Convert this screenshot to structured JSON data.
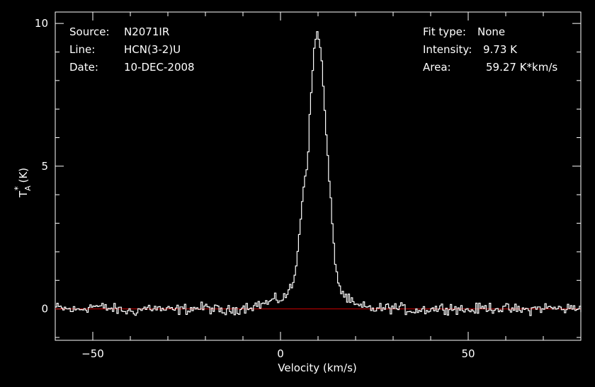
{
  "header": {
    "source_label": "Source:",
    "source_value": "N2071IR",
    "line_label": "Line:",
    "line_value": "HCN(3-2)U",
    "date_label": "Date:",
    "date_value": "10-DEC-2008",
    "fit_label": "Fit type:",
    "fit_value": "None",
    "intensity_label": "Intensity:",
    "intensity_value": "9.73 K",
    "area_label": "Area:",
    "area_value": "59.27 K*km/s"
  },
  "chart_data": {
    "type": "line",
    "title": "",
    "xlabel": "Velocity (km/s)",
    "ylabel_base": "T",
    "ylabel_sup": "*",
    "ylabel_sub": "A",
    "ylabel_unit": " (K)",
    "xlim": [
      -60,
      80
    ],
    "ylim": [
      -1.1,
      10.4
    ],
    "xticks": [
      -50,
      0,
      50
    ],
    "yticks": [
      0,
      5,
      10
    ],
    "xtick_labels": [
      "−50",
      "0",
      "50"
    ],
    "ytick_labels": [
      "0",
      "5",
      "10"
    ],
    "grid": false,
    "colors": {
      "background": "#000000",
      "axes": "#ffffff",
      "spectrum": "#ffffff",
      "baseline": "#cc0000"
    },
    "baseline_y": 0,
    "series": [
      {
        "x": [
          -60,
          -55,
          -50,
          -45,
          -40,
          -35,
          -30,
          -25,
          -20,
          -15,
          -10,
          -6,
          -4,
          -2,
          0,
          1,
          2,
          3,
          4,
          5,
          6,
          7,
          8,
          9,
          9.5,
          10,
          10.5,
          11,
          12,
          13,
          14,
          15,
          16,
          18,
          20,
          25,
          30,
          35,
          40,
          45,
          50,
          55,
          60,
          65,
          70,
          75,
          80
        ],
        "y": [
          0.05,
          -0.05,
          0.1,
          0.0,
          -0.1,
          0.05,
          -0.05,
          0.0,
          0.05,
          -0.1,
          0.05,
          0.15,
          0.2,
          0.3,
          0.35,
          0.45,
          0.6,
          0.85,
          1.4,
          3.0,
          4.3,
          5.2,
          7.6,
          9.4,
          9.7,
          9.6,
          9.1,
          8.2,
          6.1,
          4.1,
          2.2,
          1.05,
          0.6,
          0.3,
          0.1,
          0.0,
          0.05,
          -0.05,
          0.0,
          0.05,
          -0.05,
          0.05,
          0.0,
          -0.05,
          0.05,
          0.0,
          0.05
        ]
      }
    ]
  }
}
